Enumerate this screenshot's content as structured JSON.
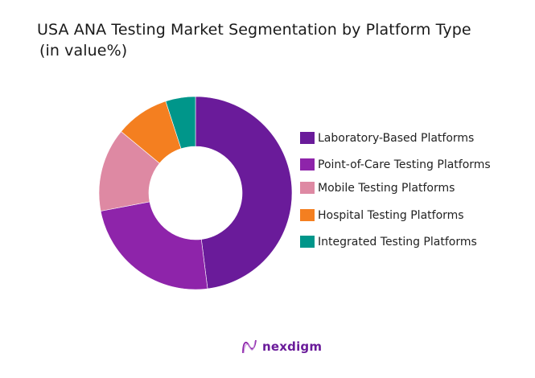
{
  "title": {
    "line1": "USA ANA Testing Market Segmentation by Platform Type",
    "line2": "(in value%)"
  },
  "chart_data": {
    "type": "pie",
    "variant": "donut",
    "title": "USA ANA Testing Market Segmentation by Platform Type (in value%)",
    "categories": [
      "Laboratory-Based Platforms",
      "Point-of-Care Testing Platforms",
      "Mobile Testing Platforms",
      "Hospital Testing Platforms",
      "Integrated Testing Platforms"
    ],
    "values": [
      48,
      24,
      14,
      9,
      5
    ],
    "colors": [
      "#6a1b9a",
      "#8e24aa",
      "#de89a3",
      "#f47f20",
      "#00968a"
    ],
    "start_angle": "top, clockwise",
    "legend_position": "right",
    "data_labels": false
  },
  "legend": {
    "items": [
      {
        "label": "Laboratory-Based Platforms",
        "color": "#6a1b9a"
      },
      {
        "label": "Point-of-Care Testing Platforms",
        "color": "#8e24aa"
      },
      {
        "label": "Mobile Testing Platforms",
        "color": "#de89a3"
      },
      {
        "label": "Hospital Testing Platforms",
        "color": "#f47f20"
      },
      {
        "label": "Integrated Testing Platforms",
        "color": "#00968a"
      }
    ]
  },
  "footer": {
    "logo_text": "nexdigm",
    "logo_icon": "nexdigm-wave-icon"
  }
}
